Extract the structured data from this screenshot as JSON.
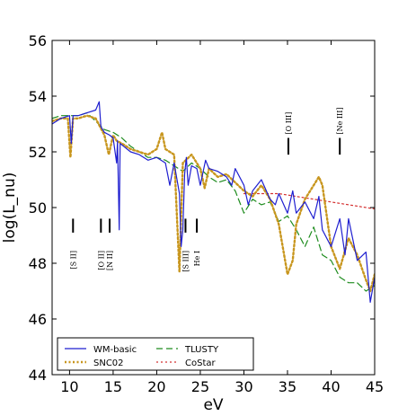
{
  "chart_data": {
    "type": "line",
    "xlabel": "eV",
    "ylabel": "log(L_nu)",
    "xlim": [
      8,
      45
    ],
    "ylim": [
      44,
      56
    ],
    "xticks": [
      10,
      15,
      20,
      25,
      30,
      35,
      40,
      45
    ],
    "yticks": [
      44,
      46,
      48,
      50,
      52,
      54,
      56
    ],
    "legend_position": "bottom-left",
    "series": [
      {
        "name": "WM-basic",
        "color": "#1f1fd0",
        "style": "solid",
        "points": [
          [
            8,
            53.0
          ],
          [
            9,
            53.2
          ],
          [
            10,
            53.3
          ],
          [
            10.2,
            52.3
          ],
          [
            10.4,
            53.3
          ],
          [
            11,
            53.3
          ],
          [
            12,
            53.4
          ],
          [
            13,
            53.5
          ],
          [
            13.4,
            53.8
          ],
          [
            13.6,
            52.9
          ],
          [
            14,
            52.7
          ],
          [
            14.6,
            52.6
          ],
          [
            15,
            52.5
          ],
          [
            15.4,
            51.6
          ],
          [
            15.5,
            52.4
          ],
          [
            15.7,
            49.2
          ],
          [
            15.8,
            52.3
          ],
          [
            16.2,
            52.2
          ],
          [
            17,
            52.0
          ],
          [
            18,
            51.9
          ],
          [
            19,
            51.7
          ],
          [
            20,
            51.8
          ],
          [
            21,
            51.6
          ],
          [
            21.5,
            50.8
          ],
          [
            22,
            51.6
          ],
          [
            22.6,
            50.5
          ],
          [
            22.8,
            48.6
          ],
          [
            23,
            49.2
          ],
          [
            23.2,
            51.2
          ],
          [
            23.4,
            51.8
          ],
          [
            23.6,
            50.8
          ],
          [
            24,
            51.5
          ],
          [
            24.6,
            51.4
          ],
          [
            25,
            50.8
          ],
          [
            25.6,
            51.7
          ],
          [
            26,
            51.4
          ],
          [
            27,
            51.3
          ],
          [
            28,
            51.1
          ],
          [
            28.6,
            50.8
          ],
          [
            29,
            51.4
          ],
          [
            30,
            50.8
          ],
          [
            30.5,
            50.1
          ],
          [
            31,
            50.6
          ],
          [
            32,
            51.0
          ],
          [
            33,
            50.3
          ],
          [
            33.6,
            50.1
          ],
          [
            34,
            50.5
          ],
          [
            35,
            49.8
          ],
          [
            35.6,
            50.6
          ],
          [
            36,
            49.8
          ],
          [
            37,
            50.2
          ],
          [
            38,
            49.6
          ],
          [
            38.6,
            50.4
          ],
          [
            39,
            49.2
          ],
          [
            40,
            48.6
          ],
          [
            41,
            49.6
          ],
          [
            41.6,
            48.3
          ],
          [
            42,
            49.6
          ],
          [
            43,
            48.1
          ],
          [
            44,
            48.4
          ],
          [
            44.5,
            46.6
          ],
          [
            45,
            47.5
          ]
        ]
      },
      {
        "name": "SNC02",
        "color": "#c8961e",
        "style": "dotted",
        "points": [
          [
            8,
            53.1
          ],
          [
            9,
            53.2
          ],
          [
            9.8,
            53.2
          ],
          [
            10.1,
            51.8
          ],
          [
            10.4,
            53.2
          ],
          [
            11,
            53.2
          ],
          [
            12,
            53.3
          ],
          [
            13,
            53.2
          ],
          [
            14,
            52.6
          ],
          [
            14.5,
            51.9
          ],
          [
            15,
            52.6
          ],
          [
            15.4,
            52.4
          ],
          [
            16,
            52.3
          ],
          [
            17,
            52.1
          ],
          [
            18,
            52.0
          ],
          [
            19,
            51.9
          ],
          [
            20,
            52.1
          ],
          [
            20.6,
            52.7
          ],
          [
            21,
            52.1
          ],
          [
            22,
            51.9
          ],
          [
            22.6,
            47.7
          ],
          [
            23,
            51.6
          ],
          [
            24,
            51.9
          ],
          [
            25,
            51.4
          ],
          [
            25.5,
            50.7
          ],
          [
            26,
            51.4
          ],
          [
            27,
            51.1
          ],
          [
            28,
            51.2
          ],
          [
            29,
            50.9
          ],
          [
            30,
            50.6
          ],
          [
            31,
            50.4
          ],
          [
            32,
            50.8
          ],
          [
            33,
            50.3
          ],
          [
            34,
            49.4
          ],
          [
            35,
            47.6
          ],
          [
            35.6,
            48.1
          ],
          [
            36,
            49.4
          ],
          [
            37,
            50.3
          ],
          [
            38,
            50.8
          ],
          [
            38.6,
            51.1
          ],
          [
            39,
            50.8
          ],
          [
            40,
            48.6
          ],
          [
            41,
            47.8
          ],
          [
            42,
            48.9
          ],
          [
            43,
            48.3
          ],
          [
            44,
            47.4
          ],
          [
            44.5,
            47.0
          ],
          [
            45,
            47.6
          ]
        ]
      },
      {
        "name": "TLUSTY",
        "color": "#1e8c1e",
        "style": "dashed",
        "points": [
          [
            8,
            53.2
          ],
          [
            9,
            53.3
          ],
          [
            10,
            53.3
          ],
          [
            11,
            53.3
          ],
          [
            12,
            53.4
          ],
          [
            13,
            53.1
          ],
          [
            14,
            52.8
          ],
          [
            15,
            52.7
          ],
          [
            16,
            52.5
          ],
          [
            17,
            52.2
          ],
          [
            18,
            52.0
          ],
          [
            19,
            51.8
          ],
          [
            20,
            51.8
          ],
          [
            21,
            51.7
          ],
          [
            22,
            51.5
          ],
          [
            23,
            51.3
          ],
          [
            24,
            51.6
          ],
          [
            25,
            51.4
          ],
          [
            26,
            51.1
          ],
          [
            27,
            50.9
          ],
          [
            28,
            51.0
          ],
          [
            29,
            50.6
          ],
          [
            30,
            49.8
          ],
          [
            31,
            50.3
          ],
          [
            32,
            50.1
          ],
          [
            33,
            50.2
          ],
          [
            34,
            49.5
          ],
          [
            35,
            49.7
          ],
          [
            36,
            49.2
          ],
          [
            37,
            48.6
          ],
          [
            38,
            49.3
          ],
          [
            39,
            48.3
          ],
          [
            40,
            48.1
          ],
          [
            41,
            47.5
          ],
          [
            42,
            47.3
          ],
          [
            43,
            47.3
          ],
          [
            44,
            47.0
          ],
          [
            45,
            47.2
          ]
        ]
      },
      {
        "name": "CoStar",
        "color": "#d43030",
        "style": "dotted",
        "points": [
          [
            30,
            50.5
          ],
          [
            32,
            50.5
          ],
          [
            34,
            50.5
          ],
          [
            36,
            50.4
          ],
          [
            38,
            50.3
          ],
          [
            40,
            50.2
          ],
          [
            42,
            50.1
          ],
          [
            45,
            49.95
          ]
        ]
      }
    ],
    "line_markers": [
      {
        "label": "[S II]",
        "x": 10.4,
        "y_range": [
          49.1,
          49.6
        ]
      },
      {
        "label": "[O II]",
        "x": 13.6,
        "y_range": [
          49.1,
          49.6
        ]
      },
      {
        "label": "[N II]",
        "x": 14.6,
        "y_range": [
          49.1,
          49.6
        ]
      },
      {
        "label": "[S III]",
        "x": 23.3,
        "y_range": [
          49.1,
          49.6
        ]
      },
      {
        "label": "He I",
        "x": 24.6,
        "y_range": [
          49.1,
          49.6
        ]
      },
      {
        "label": "[O III]",
        "x": 35.1,
        "y_range": [
          51.9,
          52.5
        ]
      },
      {
        "label": "[Ne III]",
        "x": 41.0,
        "y_range": [
          51.9,
          52.5
        ]
      }
    ]
  }
}
